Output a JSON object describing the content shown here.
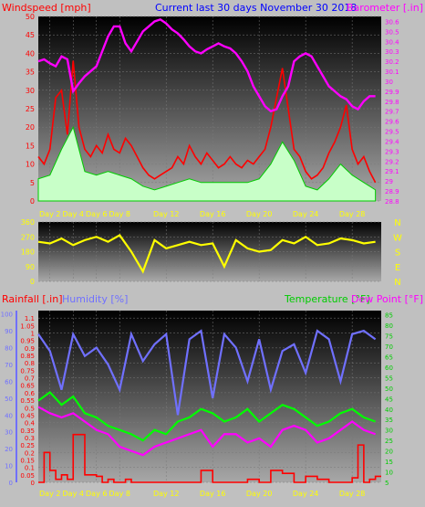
{
  "chart_data": [
    {
      "type": "line",
      "title": "Current last 30 days November 30 2018",
      "y_left_label": "Windspeed [mph]",
      "y_right_label": "Barometer [.in]",
      "x_ticks": [
        "Day 2",
        "Day 4",
        "Day 6",
        "Day 8",
        "Day 12",
        "Day 16",
        "Day 20",
        "Day 24",
        "Day 28"
      ],
      "y_left_ticks": [
        0,
        5,
        10,
        15,
        20,
        25,
        30,
        35,
        40,
        45,
        50
      ],
      "y_left_range": [
        0,
        50
      ],
      "y_right_ticks": [
        28.8,
        28.9,
        29,
        29.1,
        29.2,
        29.3,
        29.4,
        29.5,
        29.6,
        29.7,
        29.8,
        29.9,
        30,
        30.1,
        30.2,
        30.3,
        30.4,
        30.5,
        30.6
      ],
      "y_right_range": [
        28.8,
        30.65
      ],
      "series": [
        {
          "name": "Windspeed [mph]",
          "color": "#ff0000",
          "axis": "left",
          "x": [
            1,
            1.5,
            2,
            2.5,
            3,
            3.5,
            4,
            4.5,
            5,
            5.5,
            6,
            6.5,
            7,
            7.5,
            8,
            8.5,
            9,
            9.5,
            10,
            10.5,
            11,
            11.5,
            12,
            12.5,
            13,
            13.5,
            14,
            14.5,
            15,
            15.5,
            16,
            16.5,
            17,
            17.5,
            18,
            18.5,
            19,
            19.5,
            20,
            20.5,
            21,
            21.5,
            22,
            22.5,
            23,
            23.5,
            24,
            24.5,
            25,
            25.5,
            26,
            26.5,
            27,
            27.5,
            28,
            28.5,
            29,
            29.5,
            30
          ],
          "y": [
            12,
            10,
            14,
            28,
            30,
            18,
            38,
            20,
            14,
            12,
            15,
            13,
            18,
            14,
            13,
            17,
            15,
            12,
            9,
            7,
            6,
            7,
            8,
            9,
            12,
            10,
            15,
            12,
            10,
            13,
            11,
            9,
            10,
            12,
            10,
            9,
            11,
            10,
            12,
            14,
            20,
            28,
            36,
            25,
            14,
            12,
            8,
            6,
            7,
            9,
            13,
            16,
            20,
            26,
            14,
            10,
            12,
            8,
            5
          ]
        },
        {
          "name": "Gust",
          "color": "#00cc00",
          "axis": "left",
          "x": [
            1,
            2,
            3,
            4,
            5,
            6,
            7,
            8,
            9,
            10,
            11,
            12,
            13,
            14,
            15,
            16,
            17,
            18,
            19,
            20,
            21,
            22,
            23,
            24,
            25,
            26,
            27,
            28,
            29,
            30
          ],
          "y": [
            6,
            7,
            14,
            20,
            8,
            7,
            8,
            7,
            6,
            4,
            3,
            4,
            5,
            6,
            5,
            5,
            5,
            5,
            5,
            6,
            10,
            16,
            11,
            4,
            3,
            6,
            10,
            7,
            5,
            3
          ]
        },
        {
          "name": "Barometer [.in]",
          "color": "#ff00ff",
          "axis": "right",
          "x": [
            1,
            1.5,
            2,
            2.5,
            3,
            3.5,
            4,
            4.5,
            5,
            5.5,
            6,
            6.5,
            7,
            7.5,
            8,
            8.5,
            9,
            9.5,
            10,
            10.5,
            11,
            11.5,
            12,
            12.5,
            13,
            13.5,
            14,
            14.5,
            15,
            15.5,
            16,
            16.5,
            17,
            17.5,
            18,
            18.5,
            19,
            19.5,
            20,
            20.5,
            21,
            21.5,
            22,
            22.5,
            23,
            23.5,
            24,
            24.5,
            25,
            25.5,
            26,
            26.5,
            27,
            27.5,
            28,
            28.5,
            29,
            29.5,
            30
          ],
          "y": [
            30.2,
            30.22,
            30.18,
            30.15,
            30.25,
            30.22,
            29.9,
            29.98,
            30.05,
            30.1,
            30.15,
            30.3,
            30.45,
            30.55,
            30.55,
            30.38,
            30.3,
            30.4,
            30.5,
            30.55,
            30.6,
            30.62,
            30.58,
            30.52,
            30.48,
            30.42,
            30.35,
            30.3,
            30.28,
            30.32,
            30.35,
            30.38,
            30.35,
            30.33,
            30.28,
            30.2,
            30.1,
            29.95,
            29.85,
            29.75,
            29.7,
            29.72,
            29.85,
            29.95,
            30.2,
            30.25,
            30.28,
            30.25,
            30.15,
            30.05,
            29.95,
            29.9,
            29.85,
            29.82,
            29.75,
            29.72,
            29.8,
            29.85,
            29.85
          ]
        }
      ]
    },
    {
      "type": "scatter",
      "title": "",
      "y_left_ticks": [
        0,
        90,
        180,
        270,
        360
      ],
      "y_left_range": [
        0,
        360
      ],
      "y_right_labels": [
        "N",
        "W",
        "S",
        "E",
        "N"
      ],
      "series": [
        {
          "name": "Wind direction",
          "color": "#ffff00",
          "x": [
            1,
            2,
            3,
            4,
            5,
            6,
            7,
            8,
            9,
            10,
            11,
            12,
            13,
            14,
            15,
            16,
            17,
            18,
            19,
            20,
            21,
            22,
            23,
            24,
            25,
            26,
            27,
            28,
            29,
            30
          ],
          "y": [
            240,
            230,
            260,
            220,
            250,
            270,
            240,
            280,
            180,
            60,
            250,
            200,
            220,
            240,
            220,
            230,
            90,
            250,
            200,
            180,
            190,
            250,
            230,
            270,
            220,
            230,
            260,
            250,
            230,
            240
          ]
        }
      ]
    },
    {
      "type": "line",
      "title": "",
      "y_left_label": "Rainfall [.in]",
      "y_left2_label": "Humidity [%]",
      "y_right_label": "Temperature [°F]",
      "y_right2_label": "Dew Point [°F]",
      "x_ticks": [
        "Day 2",
        "Day 4",
        "Day 6",
        "Day 8",
        "Day 12",
        "Day 16",
        "Day 20",
        "Day 24",
        "Day 28"
      ],
      "rain_ticks": [
        0,
        0.05,
        0.1,
        0.15,
        0.2,
        0.25,
        0.3,
        0.35,
        0.4,
        0.45,
        0.5,
        0.55,
        0.6,
        0.65,
        0.7,
        0.75,
        0.8,
        0.85,
        0.9,
        0.95,
        1,
        1.05,
        1.1
      ],
      "rain_range": [
        0,
        1.15
      ],
      "humidity_ticks": [
        0,
        10,
        20,
        30,
        40,
        50,
        60,
        70,
        80,
        90,
        100
      ],
      "humidity_range": [
        0,
        102
      ],
      "temp_ticks": [
        5,
        10,
        15,
        20,
        25,
        30,
        35,
        40,
        45,
        50,
        55,
        60,
        65,
        70,
        75,
        80,
        85
      ],
      "temp_range": [
        5,
        87
      ],
      "series": [
        {
          "name": "Humidity [%]",
          "color": "#7070ff",
          "axis": "humidity",
          "x": [
            1,
            2,
            3,
            4,
            5,
            6,
            7,
            8,
            9,
            10,
            11,
            12,
            13,
            14,
            15,
            16,
            17,
            18,
            19,
            20,
            21,
            22,
            23,
            24,
            25,
            26,
            27,
            28,
            29,
            30
          ],
          "y": [
            88,
            78,
            55,
            88,
            75,
            80,
            70,
            55,
            88,
            72,
            82,
            88,
            40,
            85,
            90,
            50,
            88,
            80,
            60,
            85,
            55,
            78,
            82,
            65,
            90,
            85,
            60,
            88,
            90,
            85
          ]
        },
        {
          "name": "Temperature [°F]",
          "color": "#00ff00",
          "axis": "temp",
          "x": [
            1,
            2,
            3,
            4,
            5,
            6,
            7,
            8,
            9,
            10,
            11,
            12,
            13,
            14,
            15,
            16,
            17,
            18,
            19,
            20,
            21,
            22,
            23,
            24,
            25,
            26,
            27,
            28,
            29,
            30
          ],
          "y": [
            44,
            48,
            42,
            46,
            38,
            36,
            32,
            30,
            28,
            25,
            30,
            28,
            34,
            36,
            40,
            38,
            34,
            36,
            40,
            34,
            38,
            42,
            40,
            36,
            32,
            34,
            38,
            40,
            36,
            34
          ]
        },
        {
          "name": "Dew Point [°F]",
          "color": "#ff00ff",
          "axis": "temp",
          "x": [
            1,
            2,
            3,
            4,
            5,
            6,
            7,
            8,
            9,
            10,
            11,
            12,
            13,
            14,
            15,
            16,
            17,
            18,
            19,
            20,
            21,
            22,
            23,
            24,
            25,
            26,
            27,
            28,
            29,
            30
          ],
          "y": [
            41,
            38,
            36,
            38,
            34,
            30,
            28,
            22,
            20,
            18,
            22,
            24,
            26,
            28,
            30,
            22,
            28,
            28,
            24,
            26,
            22,
            30,
            32,
            30,
            24,
            26,
            30,
            34,
            30,
            28
          ]
        },
        {
          "name": "Rainfall [.in]",
          "color": "#ff0000",
          "axis": "rain",
          "x": [
            1,
            1.5,
            2,
            2.5,
            3,
            3.5,
            4,
            4.5,
            5,
            5.5,
            6,
            6.5,
            7,
            7.5,
            8,
            8.5,
            9,
            10,
            11,
            12,
            13,
            14,
            15,
            16,
            17,
            18,
            19,
            20,
            21,
            22,
            23,
            24,
            25,
            26,
            27,
            28,
            28.5,
            29,
            29.5,
            30
          ],
          "y": [
            0,
            0.2,
            0.08,
            0.02,
            0.05,
            0.02,
            0.32,
            0.32,
            0.05,
            0.05,
            0.04,
            0,
            0.02,
            0,
            0,
            0.02,
            0,
            0,
            0,
            0,
            0,
            0,
            0.08,
            0,
            0,
            0,
            0.02,
            0,
            0.08,
            0.06,
            0,
            0.04,
            0.02,
            0,
            0,
            0.03,
            0.25,
            0,
            0.02,
            0.04
          ]
        }
      ]
    }
  ]
}
